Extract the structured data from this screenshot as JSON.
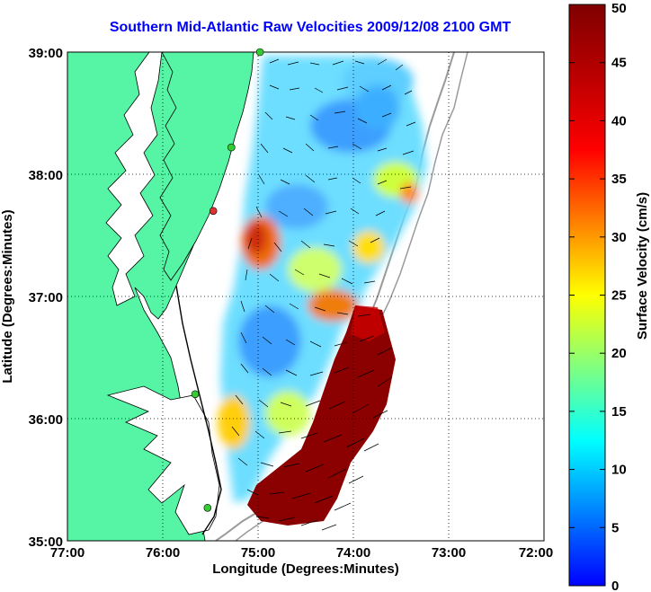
{
  "title": "Southern Mid-Atlantic Raw Velocities 2009/12/08 2100 GMT",
  "map": {
    "xlabel": "Longitude (Degrees:Minutes)",
    "ylabel": "Latitude (Degrees:Minutes)",
    "x_ticks": [
      "77:00",
      "76:00",
      "75:00",
      "74:00",
      "73:00",
      "72:00"
    ],
    "y_ticks": [
      "39:00",
      "38:00",
      "37:00",
      "36:00",
      "35:00"
    ],
    "lon_range": [
      -77,
      -72
    ],
    "lat_range": [
      35,
      39
    ],
    "grid": "dotted",
    "land_color": "#55f5a5",
    "coastline_color": "#000000",
    "isobath_color": "#9a9a9a"
  },
  "colorbar": {
    "label": "Surface Velocity (cm/s)",
    "ticks": [
      "50",
      "45",
      "40",
      "35",
      "30",
      "25",
      "20",
      "15",
      "10",
      "5",
      "0"
    ],
    "range": [
      0,
      50
    ],
    "colormap": "jet"
  },
  "stations": [
    {
      "lon": -74.98,
      "lat": 39.0,
      "color": "#33cc33"
    },
    {
      "lon": -75.28,
      "lat": 38.22,
      "color": "#33cc33"
    },
    {
      "lon": -75.47,
      "lat": 37.7,
      "color": "#dd3333"
    },
    {
      "lon": -75.66,
      "lat": 36.2,
      "color": "#33cc33"
    },
    {
      "lon": -75.53,
      "lat": 35.27,
      "color": "#33cc33"
    }
  ]
}
